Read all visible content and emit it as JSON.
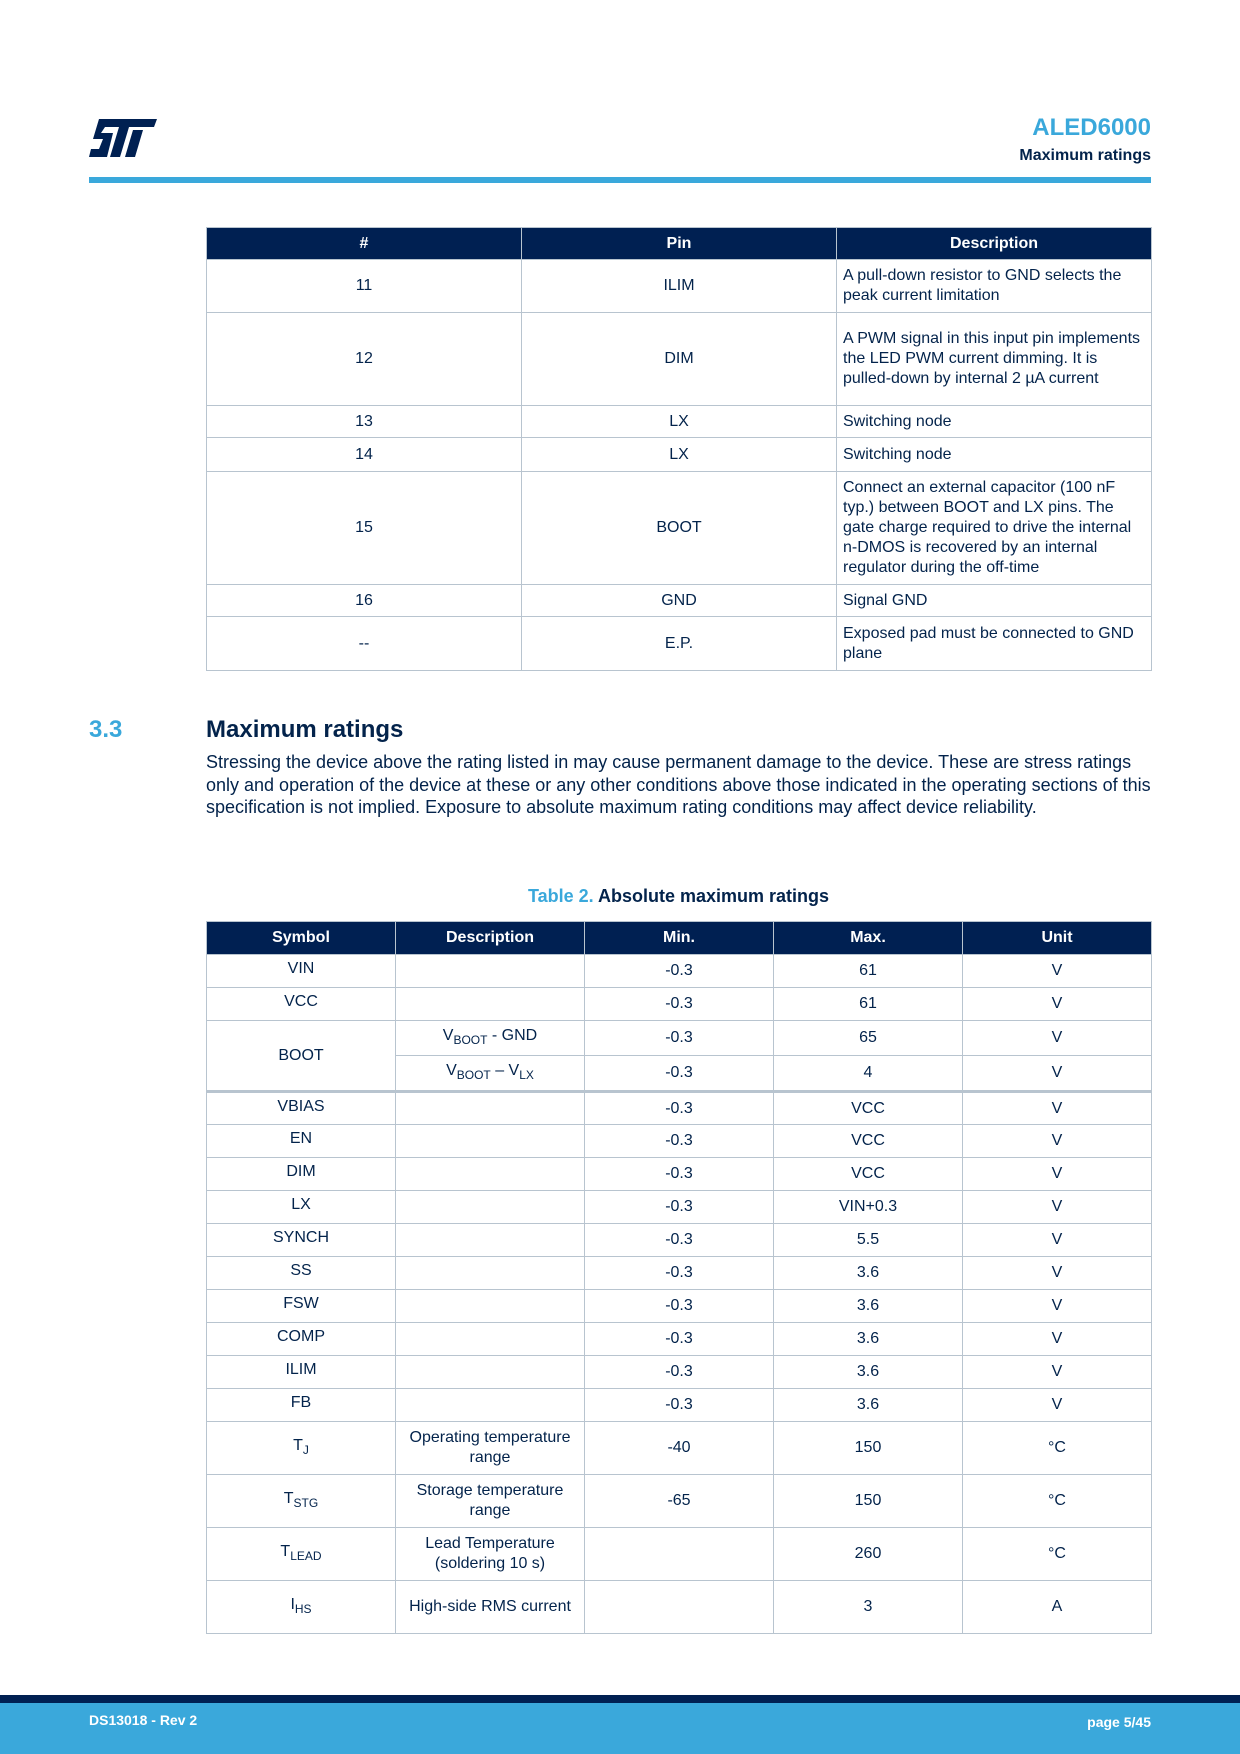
{
  "header": {
    "logo": "ST",
    "title": "ALED6000",
    "subtitle": "Maximum ratings"
  },
  "pin_table": {
    "headers": [
      "#",
      "Pin",
      "Description"
    ],
    "rows": [
      [
        "11",
        "ILIM",
        "A pull-down resistor to GND selects the peak current limitation"
      ],
      [
        "12",
        "DIM",
        "A PWM signal in this input pin implements the LED PWM current dimming. It is pulled-down by internal 2 µA current"
      ],
      [
        "13",
        "LX",
        "Switching node"
      ],
      [
        "14",
        "LX",
        "Switching node"
      ],
      [
        "15",
        "BOOT",
        "Connect an external capacitor (100 nF typ.) between BOOT and LX pins. The gate charge required to drive the internal n-DMOS is recovered by an internal regulator during the off-time"
      ],
      [
        "16",
        "GND",
        "Signal GND"
      ],
      [
        "--",
        "E.P.",
        "Exposed pad must be connected to GND plane"
      ]
    ]
  },
  "section": {
    "number": "3.3",
    "title": "Maximum ratings",
    "text": "Stressing the device above the rating listed in may cause permanent damage to the device. These are stress ratings only and operation of the device at these or any other conditions above those indicated in the operating sections of this specification is not implied. Exposure to absolute maximum rating conditions may affect device reliability."
  },
  "table2": {
    "caption_label": "Table 2.",
    "caption": "Absolute maximum ratings",
    "headers": [
      "Symbol",
      "Description",
      "Min.",
      "Max.",
      "Unit"
    ],
    "boot": {
      "symbol": "BOOT",
      "rows": [
        {
          "d1": "V",
          "d1sub": "BOOT",
          "d2": " - GND",
          "d2sub": "",
          "min": "-0.3",
          "max": "65",
          "unit": "V"
        },
        {
          "d1": "V",
          "d1sub": "BOOT",
          "d2": " – V",
          "d2sub": "LX",
          "min": "-0.3",
          "max": "4",
          "unit": "V"
        }
      ]
    },
    "rows": [
      {
        "sym": "VIN",
        "sub": "",
        "desc": "",
        "min": "-0.3",
        "max": "61",
        "unit": "V"
      },
      {
        "sym": "VCC",
        "sub": "",
        "desc": "",
        "min": "-0.3",
        "max": "61",
        "unit": "V"
      },
      {
        "sym": "VBIAS",
        "sub": "",
        "desc": "",
        "min": "-0.3",
        "max": "VCC",
        "unit": "V"
      },
      {
        "sym": "EN",
        "sub": "",
        "desc": "",
        "min": "-0.3",
        "max": "VCC",
        "unit": "V"
      },
      {
        "sym": "DIM",
        "sub": "",
        "desc": "",
        "min": "-0.3",
        "max": "VCC",
        "unit": "V"
      },
      {
        "sym": "LX",
        "sub": "",
        "desc": "",
        "min": "-0.3",
        "max": "VIN+0.3",
        "unit": "V"
      },
      {
        "sym": "SYNCH",
        "sub": "",
        "desc": "",
        "min": "-0.3",
        "max": "5.5",
        "unit": "V"
      },
      {
        "sym": "SS",
        "sub": "",
        "desc": "",
        "min": "-0.3",
        "max": "3.6",
        "unit": "V"
      },
      {
        "sym": "FSW",
        "sub": "",
        "desc": "",
        "min": "-0.3",
        "max": "3.6",
        "unit": "V"
      },
      {
        "sym": "COMP",
        "sub": "",
        "desc": "",
        "min": "-0.3",
        "max": "3.6",
        "unit": "V"
      },
      {
        "sym": "ILIM",
        "sub": "",
        "desc": "",
        "min": "-0.3",
        "max": "3.6",
        "unit": "V"
      },
      {
        "sym": "FB",
        "sub": "",
        "desc": "",
        "min": "-0.3",
        "max": "3.6",
        "unit": "V"
      },
      {
        "sym": "T",
        "sub": "J",
        "desc": "Operating temperature range",
        "min": "-40",
        "max": "150",
        "unit": "°C"
      },
      {
        "sym": "T",
        "sub": "STG",
        "desc": "Storage temperature range",
        "min": "-65",
        "max": "150",
        "unit": "°C"
      },
      {
        "sym": "T",
        "sub": "LEAD",
        "desc": "Lead Temperature (soldering 10 s)",
        "min": "",
        "max": "260",
        "unit": "°C"
      },
      {
        "sym": "I",
        "sub": "HS",
        "desc": "High-side RMS current",
        "min": "",
        "max": "3",
        "unit": "A"
      }
    ]
  },
  "footer": {
    "doc": "DS13018 - Rev 2",
    "page": "page 5/45"
  },
  "colors": {
    "navy": "#002052",
    "accent": "#3aa8db"
  }
}
